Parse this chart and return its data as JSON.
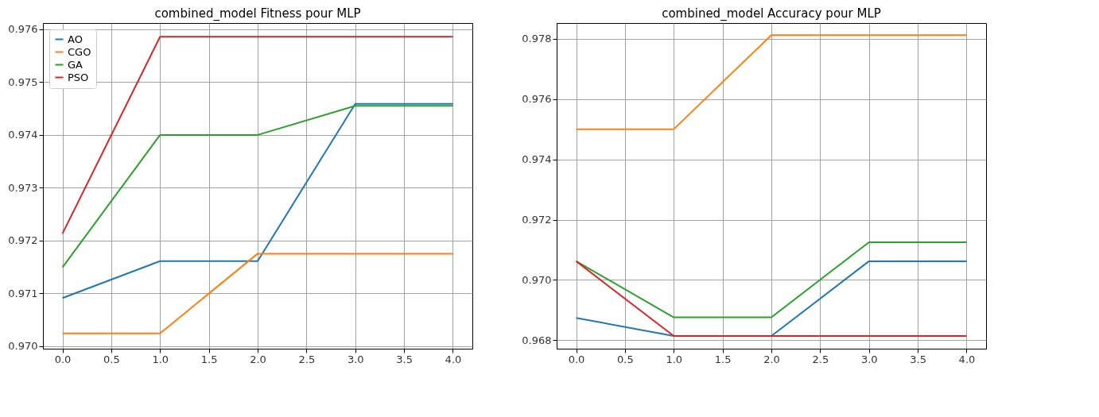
{
  "chart_data": [
    {
      "type": "line",
      "title": "combined_model Fitness pour MLP",
      "x": [
        0,
        1,
        2,
        3,
        4
      ],
      "xlim": [
        -0.2,
        4.2
      ],
      "xticks": [
        {
          "value": 0,
          "label": "0.0"
        },
        {
          "value": 0.5,
          "label": "0.5"
        },
        {
          "value": 1,
          "label": "1.0"
        },
        {
          "value": 1.5,
          "label": "1.5"
        },
        {
          "value": 2,
          "label": "2.0"
        },
        {
          "value": 2.5,
          "label": "2.5"
        },
        {
          "value": 3,
          "label": "3.0"
        },
        {
          "value": 3.5,
          "label": "3.5"
        },
        {
          "value": 4,
          "label": "4.0"
        }
      ],
      "ylim": [
        0.96995,
        0.97612
      ],
      "yticks": [
        {
          "value": 0.97,
          "label": "0.970"
        },
        {
          "value": 0.971,
          "label": "0.971"
        },
        {
          "value": 0.972,
          "label": "0.972"
        },
        {
          "value": 0.973,
          "label": "0.973"
        },
        {
          "value": 0.974,
          "label": "0.974"
        },
        {
          "value": 0.975,
          "label": "0.975"
        },
        {
          "value": 0.976,
          "label": "0.976"
        }
      ],
      "grid": true,
      "legend": "top left",
      "series": [
        {
          "name": "AO",
          "color": "#1f77b4",
          "values": [
            0.97091,
            0.97161,
            0.97161,
            0.97459,
            0.97459
          ]
        },
        {
          "name": "CGO",
          "color": "#ff7f0e",
          "values": [
            0.97024,
            0.97024,
            0.97175,
            0.97175,
            0.97175
          ]
        },
        {
          "name": "GA",
          "color": "#2ca02c",
          "values": [
            0.97149,
            0.974,
            0.974,
            0.97455,
            0.97455
          ]
        },
        {
          "name": "PSO",
          "color": "#d62728",
          "values": [
            0.97213,
            0.97586,
            0.97586,
            0.97586,
            0.97586
          ]
        }
      ]
    },
    {
      "type": "line",
      "title": "combined_model Accuracy pour MLP",
      "x": [
        0,
        1,
        2,
        3,
        4
      ],
      "xlim": [
        -0.2,
        4.2
      ],
      "xticks": [
        {
          "value": 0,
          "label": "0.0"
        },
        {
          "value": 0.5,
          "label": "0.5"
        },
        {
          "value": 1,
          "label": "1.0"
        },
        {
          "value": 1.5,
          "label": "1.5"
        },
        {
          "value": 2,
          "label": "2.0"
        },
        {
          "value": 2.5,
          "label": "2.5"
        },
        {
          "value": 3,
          "label": "3.0"
        },
        {
          "value": 3.5,
          "label": "3.5"
        },
        {
          "value": 4,
          "label": "4.0"
        }
      ],
      "ylim": [
        0.96772,
        0.97852
      ],
      "yticks": [
        {
          "value": 0.968,
          "label": "0.968"
        },
        {
          "value": 0.97,
          "label": "0.970"
        },
        {
          "value": 0.972,
          "label": "0.972"
        },
        {
          "value": 0.974,
          "label": "0.974"
        },
        {
          "value": 0.976,
          "label": "0.976"
        },
        {
          "value": 0.978,
          "label": "0.978"
        }
      ],
      "grid": true,
      "legend": "top left",
      "series": [
        {
          "name": "AO",
          "color": "#1f77b4",
          "values": [
            0.96874,
            0.96814,
            0.96814,
            0.97062,
            0.97062
          ]
        },
        {
          "name": "CGO",
          "color": "#ff7f0e",
          "values": [
            0.975,
            0.975,
            0.97812,
            0.97812,
            0.97812
          ]
        },
        {
          "name": "GA",
          "color": "#2ca02c",
          "values": [
            0.97062,
            0.96876,
            0.96876,
            0.97125,
            0.97125
          ]
        },
        {
          "name": "PSO",
          "color": "#d62728",
          "values": [
            0.97062,
            0.96814,
            0.96814,
            0.96814,
            0.96814
          ]
        }
      ]
    }
  ]
}
